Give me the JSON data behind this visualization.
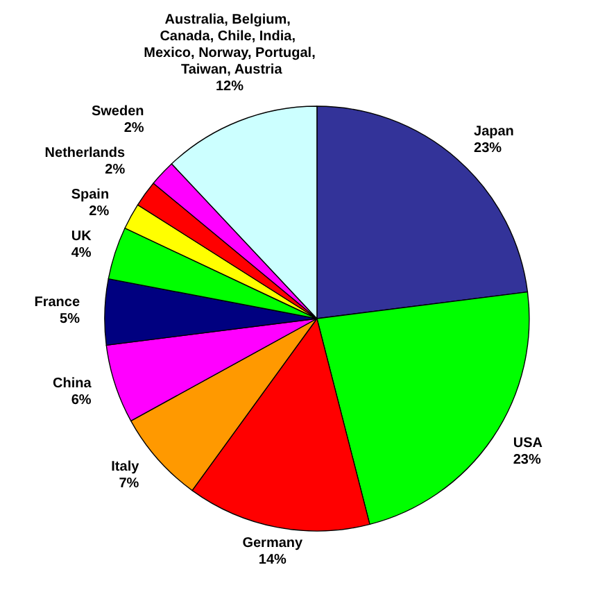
{
  "chart_data": {
    "type": "pie",
    "categories": [
      "Japan",
      "USA",
      "Germany",
      "Italy",
      "China",
      "France",
      "UK",
      "Spain",
      "Netherlands",
      "Sweden",
      "Australia, Belgium, Canada, Chile, India, Mexico, Norway, Portugal, Taiwan, Austria"
    ],
    "values": [
      23,
      23,
      14,
      7,
      6,
      5,
      4,
      2,
      2,
      2,
      12
    ],
    "value_labels": [
      "23%",
      "23%",
      "14%",
      "7%",
      "6%",
      "5%",
      "4%",
      "2%",
      "2%",
      "2%",
      "12%"
    ],
    "colors": [
      "#333399",
      "#00ff00",
      "#ff0000",
      "#ff9900",
      "#ff00ff",
      "#000080",
      "#00ff00",
      "#ffff00",
      "#ff0000",
      "#ff00ff",
      "#ccffff"
    ],
    "legend": false
  }
}
